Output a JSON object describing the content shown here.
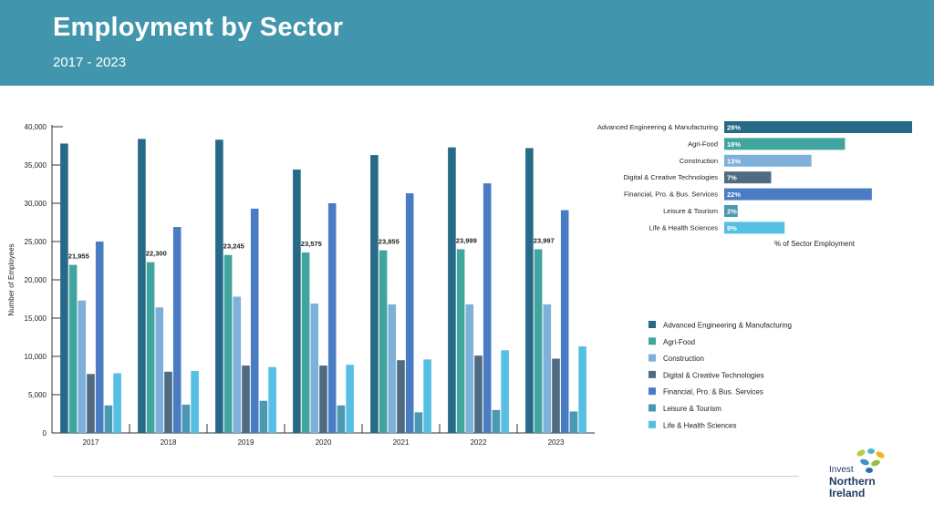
{
  "header": {
    "title": "Employment by Sector",
    "subtitle": "2017 - 2023"
  },
  "colors": {
    "header_bg": "#4196ad",
    "series": [
      "#276a87",
      "#3fa59e",
      "#7eb0d9",
      "#4e6b82",
      "#4a7cc4",
      "#4b98b3",
      "#56bfe3"
    ]
  },
  "chart_data": [
    {
      "type": "bar",
      "title": "Employment by Sector",
      "subtitle": "2017 - 2023",
      "xlabel": "",
      "ylabel": "Number of Employees",
      "ylim": [
        0,
        40000
      ],
      "yticks": [
        0,
        5000,
        10000,
        15000,
        20000,
        25000,
        30000,
        35000,
        40000
      ],
      "ytick_labels": [
        "0",
        "5,000",
        "10,000",
        "15,000",
        "20,000",
        "25,000",
        "30,000",
        "35,000",
        "40,000"
      ],
      "categories": [
        "2017",
        "2018",
        "2019",
        "2020",
        "2021",
        "2022",
        "2023"
      ],
      "series": [
        {
          "name": "Advanced Engineering & Manufacturing",
          "values": [
            37800,
            38400,
            38300,
            34400,
            36300,
            37300,
            37200
          ]
        },
        {
          "name": "Agri-Food",
          "values": [
            21955,
            22300,
            23245,
            23575,
            23855,
            23999,
            23997
          ]
        },
        {
          "name": "Construction",
          "values": [
            17300,
            16400,
            17800,
            16900,
            16800,
            16800,
            16800
          ]
        },
        {
          "name": "Digital & Creative Technologies",
          "values": [
            7700,
            8000,
            8800,
            8800,
            9500,
            10100,
            9700
          ]
        },
        {
          "name": "Financial, Pro. & Bus. Services",
          "values": [
            25000,
            26900,
            29300,
            30000,
            31300,
            32600,
            29100
          ]
        },
        {
          "name": "Leisure & Tourism",
          "values": [
            3600,
            3700,
            4200,
            3600,
            2700,
            3000,
            2800
          ]
        },
        {
          "name": "Life & Health Sciences",
          "values": [
            7800,
            8100,
            8600,
            8900,
            9600,
            10800,
            11300
          ]
        }
      ],
      "data_labels": {
        "series": "Agri-Food",
        "labels": [
          "21,955",
          "22,300",
          "23,245",
          "23,575",
          "23,855",
          "23,999",
          "23,997"
        ]
      },
      "legend": {
        "placement": "right",
        "entries": [
          "Advanced Engineering & Manufacturing",
          "Agri-Food",
          "Construction",
          "Digital & Creative Technologies",
          "Financial, Pro. & Bus. Services",
          "Leisure & Tourism",
          "Life & Health Sciences"
        ]
      }
    },
    {
      "type": "bar",
      "orientation": "horizontal",
      "title": "",
      "xlabel": "% of Sector Employment",
      "categories": [
        "Advanced Engineering & Manufacturing",
        "Agri-Food",
        "Construction",
        "Digital & Creative Technologies",
        "Financial, Pro. & Bus. Services",
        "Leisure & Tourism",
        "Life & Health Sciences"
      ],
      "values": [
        28,
        18,
        13,
        7,
        22,
        2,
        9
      ],
      "value_labels": [
        "28%",
        "18%",
        "13%",
        "7%",
        "22%",
        "2%",
        "9%"
      ],
      "xlim": [
        0,
        28
      ]
    }
  ],
  "logo": {
    "line1": "Invest",
    "line2": "Northern",
    "line3": "Ireland"
  }
}
